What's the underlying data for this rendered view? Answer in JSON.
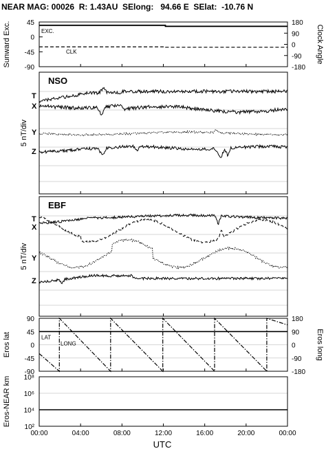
{
  "title": "NEAR MAG: 00026  R: 1.43AU  SElong:   94.66 E  SElat:  -10.76 N",
  "x_title": "UTC",
  "x_ticks": [
    "00:00",
    "04:00",
    "08:00",
    "12:00",
    "16:00",
    "20:00",
    "00:00"
  ],
  "chart_data": [
    {
      "type": "line",
      "panel": "top",
      "ylabel_left": "Sunward Exc.",
      "ylabel_right": "Clock Angle",
      "yticks_left": [
        "45",
        "0",
        "-45",
        "-90"
      ],
      "yticks_right": [
        "180",
        "90",
        "0",
        "-90",
        "-180"
      ],
      "ylim_left": [
        -90,
        45
      ],
      "ylim_right": [
        -180,
        180
      ],
      "xlim_hours": [
        0,
        24
      ],
      "grid": false,
      "series": [
        {
          "name": "EXC.",
          "axis": "left",
          "style": "solid",
          "x_hours": [
            0,
            12.2,
            12.2,
            24
          ],
          "values": [
            35,
            35,
            32,
            32
          ]
        },
        {
          "name": "CLK",
          "axis": "right",
          "style": "dashed",
          "x_hours": [
            0,
            12.2,
            12.2,
            24
          ],
          "values": [
            -20,
            -20,
            -23,
            -23
          ]
        }
      ]
    },
    {
      "type": "line",
      "panel": "NSO",
      "label": "NSO",
      "ylabel": "5 nT/div",
      "xlim_hours": [
        0,
        24
      ],
      "grid": true,
      "series": [
        {
          "name": "T",
          "style": "solid"
        },
        {
          "name": "X",
          "style": "solid"
        },
        {
          "name": "Y",
          "style": "dotted"
        },
        {
          "name": "Z",
          "style": "solid"
        }
      ]
    },
    {
      "type": "line",
      "panel": "EBF",
      "label": "EBF",
      "ylabel": "5 nT/div",
      "xlim_hours": [
        0,
        24
      ],
      "grid": true,
      "series": [
        {
          "name": "T",
          "style": "solid"
        },
        {
          "name": "X",
          "style": "dashed"
        },
        {
          "name": "Y",
          "style": "dotted"
        },
        {
          "name": "Z",
          "style": "solid"
        }
      ]
    },
    {
      "type": "line",
      "panel": "eros",
      "ylabel_left": "Eros lat",
      "ylabel_right": "Eros long",
      "yticks_left": [
        "90",
        "45",
        "0",
        "-45",
        "-90"
      ],
      "yticks_right": [
        "180",
        "90",
        "0",
        "-90",
        "-180"
      ],
      "ylim_left": [
        -90,
        90
      ],
      "ylim_right": [
        -180,
        180
      ],
      "xlim_hours": [
        0,
        24
      ],
      "grid": true,
      "series": [
        {
          "name": "LAT",
          "axis": "left",
          "style": "solid",
          "x_hours": [
            0,
            24
          ],
          "values": [
            45,
            45
          ]
        },
        {
          "name": "LONG",
          "axis": "right",
          "style": "dashdot",
          "x_hours": [
            0,
            1.95,
            1.95,
            6.9,
            6.9,
            11.95,
            11.95,
            16.95,
            16.95,
            22.0,
            22.0,
            24
          ],
          "values": [
            -60,
            -180,
            180,
            -180,
            180,
            -180,
            180,
            -180,
            180,
            -180,
            180,
            135
          ]
        }
      ]
    },
    {
      "type": "line",
      "panel": "distance",
      "ylabel": "Eros-NEAR km",
      "yticks": [
        "10⁸",
        "10⁶",
        "10⁴",
        "10²"
      ],
      "yscale": "log",
      "ylim": [
        100,
        100000000
      ],
      "xlim_hours": [
        0,
        24
      ],
      "grid": true,
      "series": [
        {
          "name": "Eros-NEAR distance",
          "style": "solid",
          "x_hours": [
            0,
            24
          ],
          "values": [
            10000,
            10000
          ]
        }
      ]
    }
  ]
}
